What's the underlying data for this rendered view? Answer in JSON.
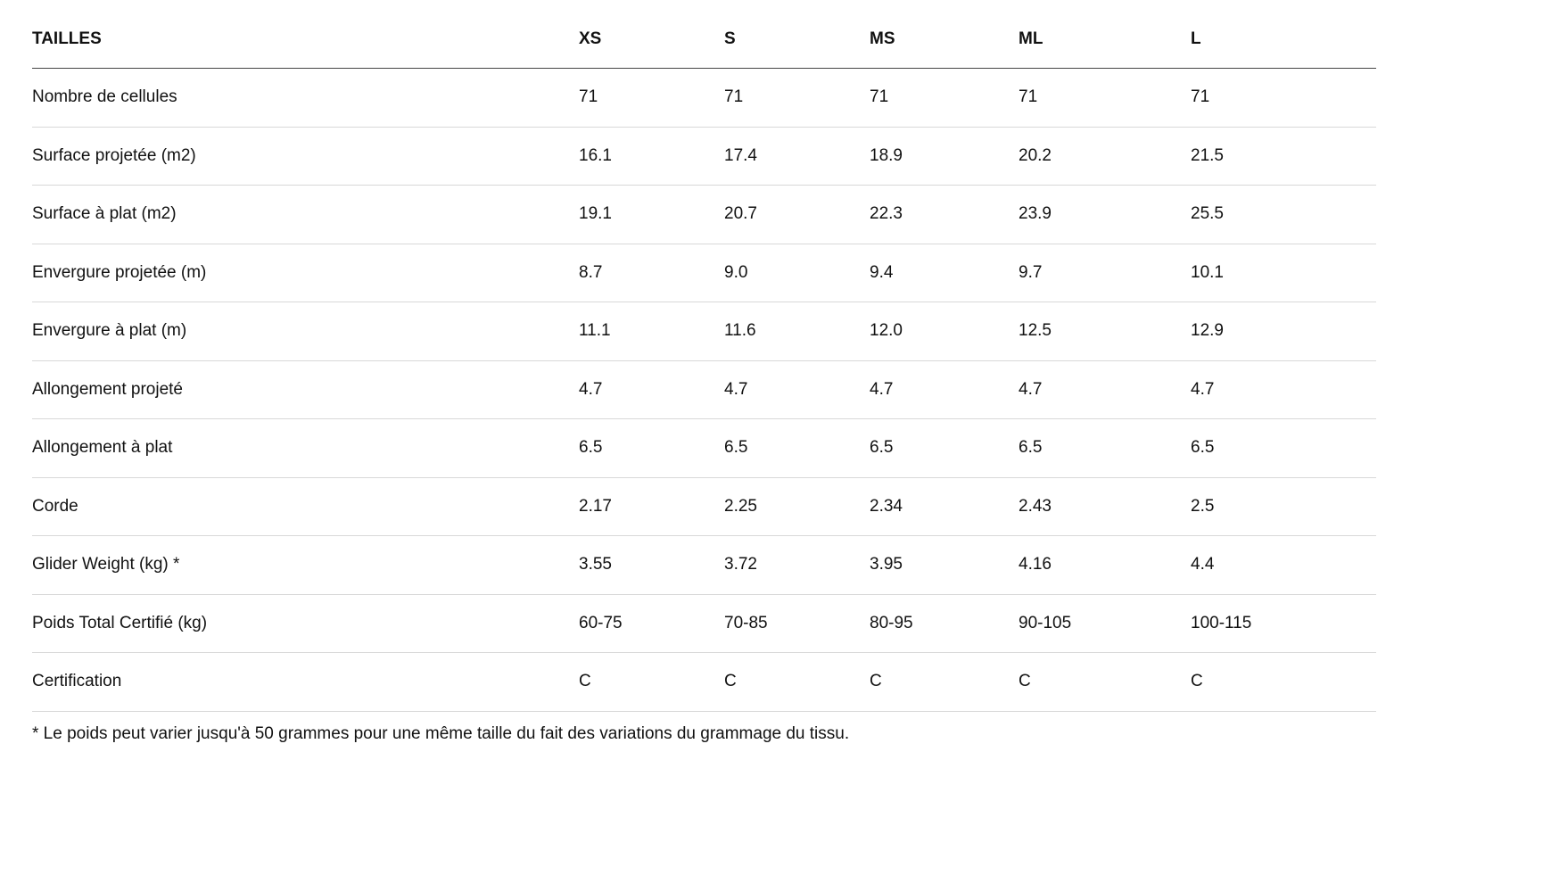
{
  "table": {
    "header": [
      "TAILLES",
      "XS",
      "S",
      "MS",
      "ML",
      "L"
    ],
    "rows": [
      [
        "Nombre de cellules",
        "71",
        "71",
        "71",
        "71",
        "71"
      ],
      [
        "Surface projetée (m2)",
        "16.1",
        "17.4",
        "18.9",
        "20.2",
        "21.5"
      ],
      [
        "Surface à plat (m2)",
        "19.1",
        "20.7",
        "22.3",
        "23.9",
        "25.5"
      ],
      [
        "Envergure projetée (m)",
        "8.7",
        "9.0",
        "9.4",
        "9.7",
        "10.1"
      ],
      [
        "Envergure à plat (m)",
        "11.1",
        "11.6",
        "12.0",
        "12.5",
        "12.9"
      ],
      [
        "Allongement projeté",
        "4.7",
        "4.7",
        "4.7",
        "4.7",
        "4.7"
      ],
      [
        "Allongement à plat",
        "6.5",
        "6.5",
        "6.5",
        "6.5",
        "6.5"
      ],
      [
        "Corde",
        "2.17",
        "2.25",
        "2.34",
        "2.43",
        "2.5"
      ],
      [
        "Glider Weight (kg) *",
        "3.55",
        "3.72",
        "3.95",
        "4.16",
        "4.4"
      ],
      [
        "Poids Total Certifié (kg)",
        "60-75",
        "70-85",
        "80-95",
        "90-105",
        "100-115"
      ],
      [
        "Certification",
        "C",
        "C",
        "C",
        "C",
        "C"
      ]
    ],
    "footnote": "* Le poids peut varier jusqu'à 50 grammes pour une même taille du fait des variations du grammage du tissu."
  }
}
